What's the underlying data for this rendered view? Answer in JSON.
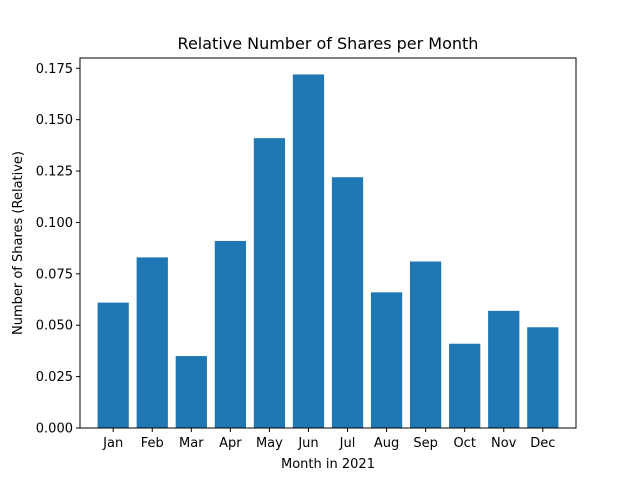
{
  "chart_data": {
    "type": "bar",
    "title": "Relative Number of Shares per Month",
    "xlabel": "Month in 2021",
    "ylabel": "Number of Shares (Relative)",
    "categories": [
      "Jan",
      "Feb",
      "Mar",
      "Apr",
      "May",
      "Jun",
      "Jul",
      "Aug",
      "Sep",
      "Oct",
      "Nov",
      "Dec"
    ],
    "values": [
      0.061,
      0.083,
      0.035,
      0.091,
      0.141,
      0.172,
      0.122,
      0.066,
      0.081,
      0.041,
      0.057,
      0.049
    ],
    "ylim": [
      0,
      0.18
    ],
    "yticks": [
      "0.000",
      "0.025",
      "0.050",
      "0.075",
      "0.100",
      "0.125",
      "0.150",
      "0.175"
    ],
    "bar_color": "#1f77b4",
    "grid": false,
    "legend": "none"
  }
}
